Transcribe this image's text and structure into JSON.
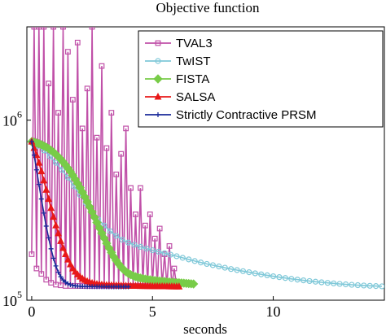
{
  "chart_data": {
    "type": "line",
    "title": "Objective function",
    "xlabel": "seconds",
    "ylabel": "",
    "yscale": "log",
    "xlim": [
      -0.2,
      14.6
    ],
    "ylim": [
      100000,
      3300000
    ],
    "xticks": [
      0,
      5,
      10
    ],
    "yticks": [
      {
        "value": 100000,
        "base": "10",
        "exp": "5"
      },
      {
        "value": 1000000,
        "base": "10",
        "exp": "6"
      }
    ],
    "grid": false,
    "legend_position": "top-right",
    "series": [
      {
        "name": "TVAL3",
        "color": "#c050a8",
        "marker": "square",
        "markevery": 1,
        "x": [
          0.0,
          0.1,
          0.2,
          0.3,
          0.4,
          0.5,
          0.6,
          0.7,
          0.8,
          0.9,
          1.0,
          1.1,
          1.2,
          1.3,
          1.4,
          1.5,
          1.6,
          1.7,
          1.8,
          1.9,
          2.0,
          2.1,
          2.2,
          2.3,
          2.4,
          2.5,
          2.6,
          2.7,
          2.8,
          2.9,
          3.0,
          3.1,
          3.2,
          3.3,
          3.4,
          3.5,
          3.6,
          3.7,
          3.8,
          3.9,
          4.0,
          4.1,
          4.2,
          4.3,
          4.4,
          4.5,
          4.6,
          4.7,
          4.8,
          4.9,
          5.0,
          5.1,
          5.2,
          5.3,
          5.4,
          5.5,
          5.6,
          5.7,
          5.8,
          5.9,
          6.0
        ],
        "y": [
          180000,
          3300000,
          150000,
          3300000,
          140000,
          3300000,
          130000,
          1600000,
          125000,
          3300000,
          122000,
          1100000,
          121000,
          3300000,
          120000,
          2400000,
          120000,
          1300000,
          120000,
          2700000,
          120000,
          900000,
          120000,
          1500000,
          120000,
          3300000,
          120000,
          800000,
          120000,
          2000000,
          120000,
          700000,
          120000,
          1100000,
          120000,
          500000,
          120000,
          650000,
          120000,
          900000,
          120000,
          420000,
          120000,
          300000,
          120000,
          420000,
          120000,
          260000,
          120000,
          300000,
          120000,
          220000,
          120000,
          250000,
          120000,
          180000,
          120000,
          200000,
          120000,
          150000,
          120000
        ]
      },
      {
        "name": "TwIST",
        "color": "#7fc8d8",
        "marker": "circle",
        "markevery": 1,
        "x": [
          0.0,
          0.25,
          0.5,
          0.75,
          1.0,
          1.25,
          1.5,
          1.75,
          2.0,
          2.25,
          2.5,
          2.75,
          3.0,
          3.25,
          3.5,
          3.75,
          4.0,
          4.25,
          4.5,
          4.75,
          5.0,
          5.25,
          5.5,
          5.75,
          6.0,
          6.25,
          6.5,
          6.75,
          7.0,
          7.25,
          7.5,
          7.75,
          8.0,
          8.25,
          8.5,
          8.75,
          9.0,
          9.25,
          9.5,
          9.75,
          10.0,
          10.25,
          10.5,
          10.75,
          11.0,
          11.25,
          11.5,
          11.75,
          12.0,
          12.25,
          12.5,
          12.75,
          13.0,
          13.25,
          13.5,
          13.75,
          14.0,
          14.25,
          14.5
        ],
        "y": [
          750000,
          720000,
          680000,
          630000,
          580000,
          530000,
          480000,
          430000,
          385000,
          345000,
          310000,
          282000,
          260000,
          242000,
          228000,
          217000,
          209000,
          203000,
          198000,
          193500,
          189500,
          186000,
          182500,
          179000,
          175500,
          172000,
          168500,
          165000,
          162000,
          159000,
          156500,
          154000,
          151500,
          149000,
          147000,
          145000,
          143000,
          141000,
          139200,
          137500,
          135800,
          134300,
          132800,
          131400,
          130100,
          128900,
          127800,
          126700,
          125700,
          124800,
          124000,
          123200,
          122500,
          121800,
          121200,
          120700,
          120200,
          119800,
          119400
        ]
      },
      {
        "name": "FISTA",
        "color": "#78cc48",
        "marker": "diamond",
        "markevery": 1,
        "x": [
          0.0,
          0.1,
          0.2,
          0.3,
          0.4,
          0.5,
          0.6,
          0.7,
          0.8,
          0.9,
          1.0,
          1.1,
          1.2,
          1.3,
          1.4,
          1.5,
          1.6,
          1.7,
          1.8,
          1.9,
          2.0,
          2.1,
          2.2,
          2.3,
          2.4,
          2.5,
          2.6,
          2.7,
          2.8,
          2.9,
          3.0,
          3.1,
          3.2,
          3.3,
          3.4,
          3.5,
          3.6,
          3.7,
          3.8,
          3.9,
          4.0,
          4.1,
          4.2,
          4.3,
          4.4,
          4.5,
          4.6,
          4.7,
          4.8,
          4.9,
          5.0,
          5.1,
          5.2,
          5.3,
          5.4,
          5.5,
          5.6,
          5.7,
          5.8,
          5.9,
          6.0,
          6.1,
          6.2,
          6.3,
          6.4,
          6.5,
          6.6,
          6.7
        ],
        "y": [
          760000,
          755000,
          748000,
          740000,
          731000,
          720000,
          708000,
          695000,
          680000,
          664000,
          646000,
          627000,
          607000,
          586000,
          564000,
          541000,
          518000,
          494000,
          470000,
          446000,
          422000,
          398000,
          375000,
          352000,
          330000,
          309000,
          289000,
          270000,
          252000,
          236000,
          221000,
          207000,
          195000,
          184000,
          174000,
          166000,
          159000,
          153000,
          148000,
          144000,
          141000,
          138500,
          136500,
          135000,
          133800,
          132700,
          131800,
          131000,
          130300,
          129700,
          129100,
          128600,
          128100,
          127700,
          127300,
          126900,
          126500,
          126100,
          125800,
          125500,
          125200,
          124900,
          124600,
          124300,
          124000,
          123700,
          123400,
          123100
        ]
      },
      {
        "name": "SALSA",
        "color": "#e81818",
        "marker": "triangle",
        "markevery": 1,
        "x": [
          0.0,
          0.1,
          0.2,
          0.3,
          0.4,
          0.5,
          0.6,
          0.7,
          0.8,
          0.9,
          1.0,
          1.1,
          1.2,
          1.3,
          1.4,
          1.5,
          1.6,
          1.7,
          1.8,
          1.9,
          2.0,
          2.1,
          2.2,
          2.3,
          2.4,
          2.5,
          2.6,
          2.7,
          2.8,
          2.9,
          3.0,
          3.1,
          3.2,
          3.3,
          3.4,
          3.5,
          3.6,
          3.7,
          3.8,
          3.9,
          4.0,
          4.1,
          4.2,
          4.3,
          4.4,
          4.5,
          4.6,
          4.7,
          4.8,
          4.9,
          5.0,
          5.1,
          5.2,
          5.3,
          5.4,
          5.5,
          5.6,
          5.7,
          5.8,
          5.9,
          6.0,
          6.1
        ],
        "y": [
          760000,
          700000,
          640000,
          580000,
          520000,
          462000,
          410000,
          365000,
          325000,
          290000,
          260000,
          235000,
          213000,
          195000,
          180000,
          168000,
          158000,
          150000,
          144000,
          139000,
          135000,
          131800,
          129300,
          127300,
          125700,
          124500,
          123600,
          122900,
          122300,
          121900,
          121600,
          121300,
          121100,
          120900,
          120700,
          120600,
          120500,
          120400,
          120300,
          120200,
          120100,
          120050,
          120000,
          119950,
          119900,
          119850,
          119800,
          119750,
          119700,
          119650,
          119600,
          119550,
          119500,
          119450,
          119400,
          119350,
          119300,
          119250,
          119200,
          119150,
          119100,
          119050
        ]
      },
      {
        "name": "Strictly Contractive PRSM",
        "color": "#1a2a9a",
        "marker": "plus",
        "markevery": 1,
        "x": [
          0.0,
          0.1,
          0.2,
          0.3,
          0.4,
          0.5,
          0.6,
          0.7,
          0.8,
          0.9,
          1.0,
          1.1,
          1.2,
          1.3,
          1.4,
          1.5,
          1.6,
          1.7,
          1.8,
          1.9,
          2.0,
          2.1,
          2.2,
          2.3,
          2.4,
          2.5,
          2.6,
          2.7,
          2.8,
          2.9,
          3.0,
          3.1,
          3.2,
          3.3,
          3.4,
          3.5,
          3.6,
          3.7,
          3.8,
          3.9,
          4.0
        ],
        "y": [
          760000,
          640000,
          530000,
          440000,
          365000,
          305000,
          258000,
          222000,
          193000,
          171000,
          155000,
          143000,
          135000,
          129500,
          125800,
          123400,
          121900,
          120900,
          120200,
          119800,
          119500,
          119300,
          119200,
          119100,
          119050,
          119000,
          118950,
          118900,
          118870,
          118840,
          118810,
          118790,
          118770,
          118750,
          118730,
          118710,
          118700,
          118690,
          118680,
          118670,
          118660
        ]
      }
    ]
  }
}
